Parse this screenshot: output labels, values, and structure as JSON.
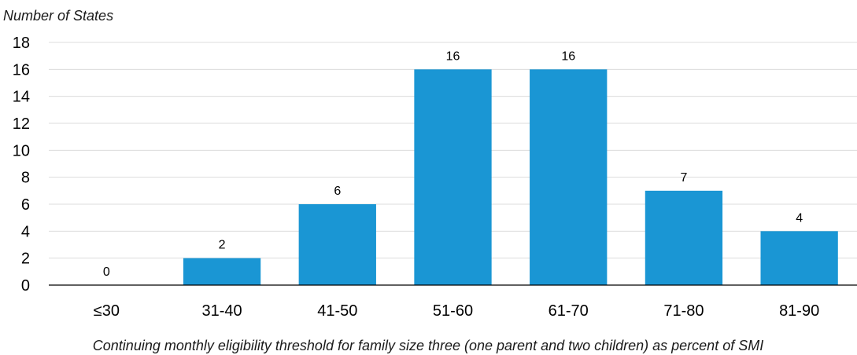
{
  "chart_data": {
    "type": "bar",
    "ylabel": "Number of States",
    "xlabel": "Continuing monthly eligibility threshold for family size three (one parent and two children) as percent of SMI",
    "categories": [
      "≤30",
      "31-40",
      "41-50",
      "51-60",
      "61-70",
      "71-80",
      "81-90"
    ],
    "values": [
      0,
      2,
      6,
      16,
      16,
      7,
      4
    ],
    "ylim": [
      0,
      18
    ],
    "yticks": [
      0,
      2,
      4,
      6,
      8,
      10,
      12,
      14,
      16,
      18
    ],
    "grid": true,
    "bar_color": "#1a96d4"
  }
}
